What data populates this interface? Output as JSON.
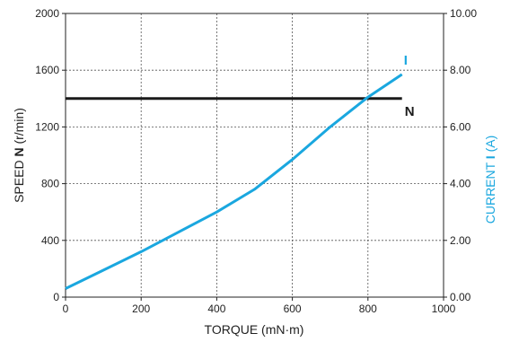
{
  "chart_data": {
    "type": "line",
    "xlabel": "TORQUE (mN·m)",
    "ylabel_left": {
      "prefix": "SPEED ",
      "symbol": "N",
      "unit": " (r/min)"
    },
    "ylabel_right": {
      "prefix": "CURRENT ",
      "symbol": "I",
      "unit": " (A)"
    },
    "x_ticks": [
      "0",
      "200",
      "400",
      "600",
      "800",
      "1000"
    ],
    "x_tick_values": [
      0,
      200,
      400,
      600,
      800,
      1000
    ],
    "y_left_ticks": [
      "0",
      "400",
      "800",
      "1200",
      "1600",
      "2000"
    ],
    "y_left_tick_values": [
      0,
      400,
      800,
      1200,
      1600,
      2000
    ],
    "y_right_ticks": [
      "0.00",
      "2.00",
      "4.00",
      "6.00",
      "8.00",
      "10.00"
    ],
    "xlim": [
      0,
      1000
    ],
    "ylim_left": [
      0,
      2000
    ],
    "ylim_right": [
      0,
      10
    ],
    "grid": true,
    "series": [
      {
        "name": "N",
        "axis": "left",
        "color": "#1a1a1a",
        "points": [
          [
            0,
            1400
          ],
          [
            890,
            1400
          ]
        ]
      },
      {
        "name": "I",
        "axis": "right",
        "color": "#1aa7df",
        "points": [
          [
            0,
            0.3
          ],
          [
            100,
            0.95
          ],
          [
            200,
            1.6
          ],
          [
            300,
            2.3
          ],
          [
            400,
            3.0
          ],
          [
            500,
            3.8
          ],
          [
            600,
            4.85
          ],
          [
            700,
            6.0
          ],
          [
            800,
            7.05
          ],
          [
            890,
            7.85
          ]
        ]
      }
    ]
  }
}
